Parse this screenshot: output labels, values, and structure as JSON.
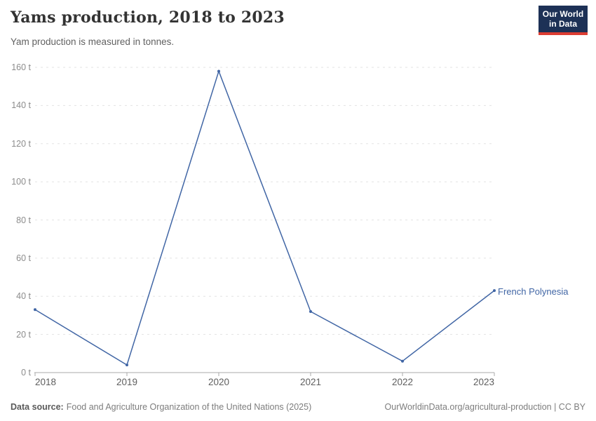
{
  "header": {
    "title": "Yams production, 2018 to 2023",
    "subtitle": "Yam production is measured in tonnes.",
    "logo": {
      "line1": "Our World",
      "line2": "in Data"
    }
  },
  "footer": {
    "source_label": "Data source:",
    "source_text": "Food and Agriculture Organization of the United Nations (2025)",
    "rights": "OurWorldinData.org/agricultural-production | CC BY"
  },
  "colors": {
    "series_blue": "#4166a5",
    "gridline": "#e3e3e3",
    "axis_line": "#a8a8a8",
    "logo_bg": "#1d3156",
    "logo_red": "#dc3d33"
  },
  "chart_data": {
    "type": "line",
    "title": "Yams production, 2018 to 2023",
    "subtitle": "Yam production is measured in tonnes.",
    "x": [
      2018,
      2019,
      2020,
      2021,
      2022,
      2023
    ],
    "series": [
      {
        "name": "French Polynesia",
        "values": [
          33,
          4,
          158,
          32,
          6,
          43
        ],
        "color": "#4166a5"
      }
    ],
    "unit": "t",
    "xlabel": "",
    "ylabel": "",
    "ylim": [
      0,
      160
    ],
    "yticks": [
      0,
      20,
      40,
      60,
      80,
      100,
      120,
      140,
      160
    ],
    "ytick_suffix": " t",
    "grid": "horizontal-dashed",
    "legend_position": "end-of-line-label"
  }
}
